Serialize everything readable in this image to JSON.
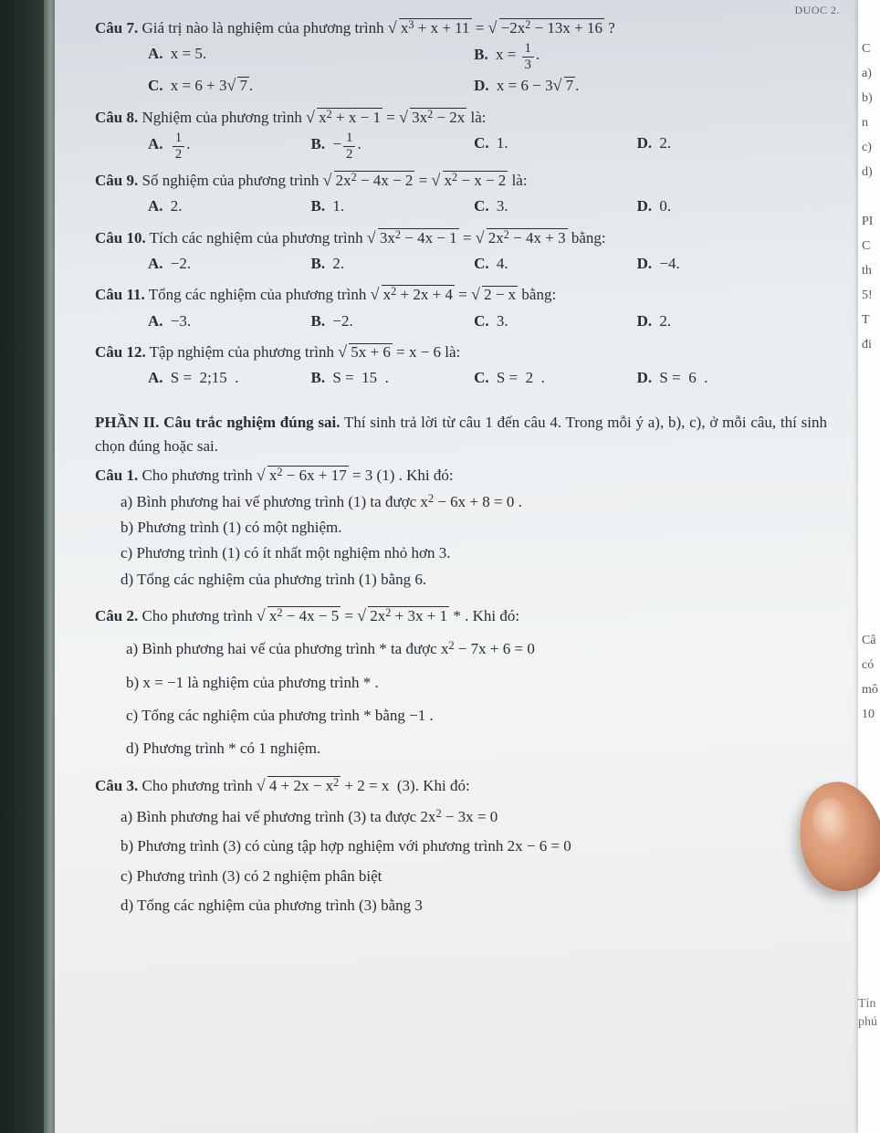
{
  "scrap_header": "DUOC 2.",
  "questions": [
    {
      "id": "cau7",
      "label": "Câu 7.",
      "stem_pre": "Giá trị nào là nghiệm của phương trình ",
      "eq_lhs": "x<sup>3</sup> + x + 11",
      "eq_rhs": "−2x<sup>2</sup> − 13x + 16",
      "stem_post": " ?",
      "layout": "2col",
      "opts": {
        "A": "x = 5.",
        "B": "x = <span class='frac'><span class='n'>1</span><span class='d'>3</span></span>.",
        "C": "x = 6 + 3<span class='sqrt'><span class='rad'>7</span></span>.",
        "D": "x = 6 − 3<span class='sqrt'><span class='rad'>7</span></span>."
      }
    },
    {
      "id": "cau8",
      "label": "Câu 8.",
      "stem_pre": "Nghiệm của phương trình ",
      "eq_lhs": "x<sup>2</sup> + x − 1",
      "eq_rhs": "3x<sup>2</sup> − 2x",
      "stem_post": " là:",
      "layout": "4col",
      "opts": {
        "A": "<span class='frac'><span class='n'>1</span><span class='d'>2</span></span>.",
        "B": "−<span class='frac'><span class='n'>1</span><span class='d'>2</span></span>.",
        "C": "1.",
        "D": "2."
      }
    },
    {
      "id": "cau9",
      "label": "Câu 9.",
      "stem_pre": "Số nghiệm của phương trình ",
      "eq_lhs": "2x<sup>2</sup> − 4x − 2",
      "eq_rhs": "x<sup>2</sup> − x − 2",
      "stem_post": " là:",
      "layout": "4col",
      "opts": {
        "A": "2.",
        "B": "1.",
        "C": "3.",
        "D": "0."
      }
    },
    {
      "id": "cau10",
      "label": "Câu 10.",
      "stem_pre": "Tích các nghiệm của phương trình ",
      "eq_lhs": "3x<sup>2</sup> − 4x − 1",
      "eq_rhs": "2x<sup>2</sup> − 4x + 3",
      "stem_post": " bằng:",
      "layout": "4col",
      "opts": {
        "A": "−2.",
        "B": "2.",
        "C": "4.",
        "D": "−4."
      }
    },
    {
      "id": "cau11",
      "label": "Câu 11.",
      "stem_pre": "Tổng các nghiệm của phương trình ",
      "eq_lhs": "x<sup>2</sup> + 2x + 4",
      "eq_rhs": "2 − x",
      "stem_post": " bằng:",
      "layout": "4col",
      "opts": {
        "A": "−3.",
        "B": "−2.",
        "C": "3.",
        "D": "2."
      }
    },
    {
      "id": "cau12",
      "label": "Câu 12.",
      "stem_pre": "Tập nghiệm của phương trình ",
      "single_eq_lhs": "5x + 6",
      "single_rhs_plain": "x − 6",
      "stem_post": " là:",
      "layout": "4col",
      "opts": {
        "A": "S =&nbsp; 2;15&nbsp; .",
        "B": "S =&nbsp; 15&nbsp; .",
        "C": "S =&nbsp; 2&nbsp; .",
        "D": "S =&nbsp; 6&nbsp; ."
      }
    }
  ],
  "part2_title": "PHẦN II. Câu trắc nghiệm đúng sai.",
  "part2_text": " Thí sinh trả lời từ câu 1 đến câu 4. Trong mỗi ý a), b), c), ở mỗi câu, thí sinh chọn đúng hoặc sai.",
  "p2q1": {
    "label": "Câu 1.",
    "pre": "Cho phương trình  ",
    "rad": "x<sup>2</sup> − 6x + 17",
    "post": " = 3 (1) . Khi đó:",
    "a": "a) Bình phương hai vế phương trình (1) ta được  x<sup>2</sup> − 6x + 8 = 0 .",
    "b": "b) Phương trình (1) có một nghiệm.",
    "c": "c) Phương trình (1) có ít nhất một nghiệm nhỏ hơn 3.",
    "d": "d) Tổng các nghiệm của phương trình (1) bằng 6."
  },
  "p2q2": {
    "label": "Câu 2.",
    "pre": "Cho phương trình ",
    "lrad": "x<sup>2</sup> − 4x − 5",
    "rrad": "2x<sup>2</sup> + 3x + 1",
    "post": "  *  . Khi đó:",
    "a": "a) Bình phương hai vế của phương trình  *  ta được  x<sup>2</sup> − 7x + 6 = 0",
    "b": "b) x = −1 là nghiệm của phương trình  *  .",
    "c": "c) Tổng các nghiệm của phương trình  *  bằng −1 .",
    "d": "d) Phương trình  *  có 1 nghiệm."
  },
  "p2q3": {
    "label": "Câu 3.",
    "pre": "Cho phương trình ",
    "rad": "4 + 2x − x<sup>2</sup>",
    "post": " + 2 = x&nbsp;&nbsp;(3). Khi đó:",
    "a": "a) Bình phương hai vế phương trình (3) ta được 2x<sup>2</sup> − 3x = 0",
    "b": "b) Phương trình (3) có cùng tập hợp nghiệm với phương trình 2x − 6 = 0",
    "c": "c) Phương trình (3) có 2 nghiệm phân biệt",
    "d": "d) Tổng các nghiệm của phương trình (3) bằng 3"
  },
  "right_margin": [
    "",
    "C",
    "a)",
    "b)",
    "n",
    "c)",
    "d)",
    "",
    "PI",
    "C",
    "th",
    "5!",
    "T",
    "đi"
  ],
  "right_margin_low": [
    "Câ",
    "có",
    "mô",
    "10"
  ],
  "right_bottom": [
    "Tín",
    "phú"
  ]
}
